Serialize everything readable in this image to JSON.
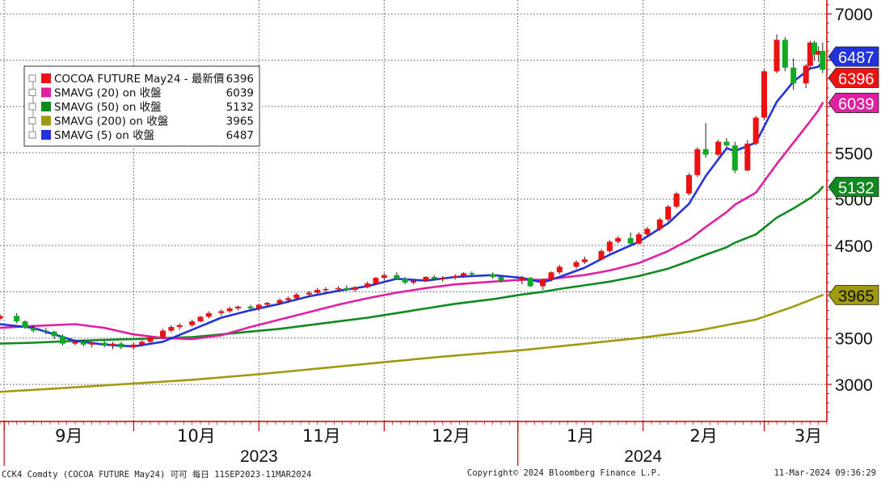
{
  "chart_data": {
    "type": "line",
    "title": "",
    "xlabel": "",
    "ylabel": "",
    "ylim": [
      2600,
      7150
    ],
    "y_ticks": [
      3000,
      3500,
      4000,
      4500,
      5000,
      5500,
      6000,
      6500,
      7000
    ],
    "x_date_range": [
      "2023-08-31",
      "2024-03-16"
    ],
    "months": [
      {
        "label": "9月",
        "date": "2023-09-01"
      },
      {
        "label": "10月",
        "date": "2023-10-02"
      },
      {
        "label": "11月",
        "date": "2023-11-01"
      },
      {
        "label": "12月",
        "date": "2023-12-01"
      },
      {
        "label": "1月",
        "date": "2024-01-02"
      },
      {
        "label": "2月",
        "date": "2024-02-01"
      },
      {
        "label": "3月",
        "date": "2024-03-01"
      }
    ],
    "years": [
      {
        "label": "2023",
        "date": "2023-11-01"
      },
      {
        "label": "2024",
        "date": "2024-02-01"
      }
    ],
    "legend": {
      "items": [
        {
          "label": "COCOA FUTURE May24 - 最新價",
          "value": "6396",
          "color": "#ee1111"
        },
        {
          "label": "SMAVG (20)  on 收盤",
          "value": "6039",
          "color": "#e020a0"
        },
        {
          "label": "SMAVG (50)  on 收盤",
          "value": "5132",
          "color": "#108a20"
        },
        {
          "label": "SMAVG (200)  on 收盤",
          "value": "3965",
          "color": "#a09a10"
        },
        {
          "label": "SMAVG (5)  on 收盤",
          "value": "6487",
          "color": "#2233dd"
        }
      ]
    },
    "value_flags": [
      {
        "value": 6487,
        "text": "6487",
        "color": "#2233dd"
      },
      {
        "value": 6396,
        "text": "6396",
        "color": "#ee1111"
      },
      {
        "value": 6039,
        "text": "6039",
        "color": "#e020a0"
      },
      {
        "value": 5132,
        "text": "5132",
        "color": "#108a20"
      },
      {
        "value": 3965,
        "text": "3965",
        "color": "#a09a10"
      }
    ],
    "candles": [
      [
        "2023-08-31",
        3710,
        3760,
        3690,
        3740
      ],
      [
        "2023-09-04",
        3740,
        3770,
        3660,
        3680
      ],
      [
        "2023-09-06",
        3680,
        3690,
        3600,
        3610
      ],
      [
        "2023-09-08",
        3610,
        3640,
        3560,
        3580
      ],
      [
        "2023-09-11",
        3580,
        3610,
        3540,
        3570
      ],
      [
        "2023-09-13",
        3570,
        3580,
        3490,
        3520
      ],
      [
        "2023-09-15",
        3520,
        3540,
        3420,
        3440
      ],
      [
        "2023-09-18",
        3440,
        3480,
        3420,
        3460
      ],
      [
        "2023-09-20",
        3460,
        3480,
        3410,
        3430
      ],
      [
        "2023-09-22",
        3430,
        3460,
        3400,
        3450
      ],
      [
        "2023-09-25",
        3450,
        3470,
        3400,
        3420
      ],
      [
        "2023-09-27",
        3420,
        3460,
        3380,
        3440
      ],
      [
        "2023-09-29",
        3440,
        3460,
        3380,
        3400
      ],
      [
        "2023-10-02",
        3400,
        3450,
        3380,
        3430
      ],
      [
        "2023-10-04",
        3430,
        3480,
        3410,
        3460
      ],
      [
        "2023-10-06",
        3460,
        3520,
        3440,
        3510
      ],
      [
        "2023-10-09",
        3510,
        3600,
        3490,
        3580
      ],
      [
        "2023-10-11",
        3580,
        3640,
        3560,
        3620
      ],
      [
        "2023-10-13",
        3620,
        3660,
        3590,
        3640
      ],
      [
        "2023-10-16",
        3640,
        3700,
        3620,
        3680
      ],
      [
        "2023-10-18",
        3680,
        3740,
        3670,
        3730
      ],
      [
        "2023-10-20",
        3730,
        3790,
        3710,
        3770
      ],
      [
        "2023-10-23",
        3770,
        3810,
        3740,
        3790
      ],
      [
        "2023-10-25",
        3790,
        3840,
        3770,
        3820
      ],
      [
        "2023-10-27",
        3820,
        3850,
        3800,
        3840
      ],
      [
        "2023-10-30",
        3840,
        3860,
        3800,
        3820
      ],
      [
        "2023-11-01",
        3820,
        3870,
        3800,
        3860
      ],
      [
        "2023-11-03",
        3860,
        3890,
        3840,
        3880
      ],
      [
        "2023-11-06",
        3880,
        3930,
        3860,
        3910
      ],
      [
        "2023-11-08",
        3910,
        3950,
        3880,
        3930
      ],
      [
        "2023-11-10",
        3930,
        3990,
        3910,
        3970
      ],
      [
        "2023-11-13",
        3970,
        4010,
        3950,
        3990
      ],
      [
        "2023-11-15",
        3990,
        4040,
        3970,
        4020
      ],
      [
        "2023-11-17",
        4020,
        4050,
        3990,
        4030
      ],
      [
        "2023-11-20",
        4030,
        4060,
        4000,
        4040
      ],
      [
        "2023-11-22",
        4040,
        4070,
        4010,
        4020
      ],
      [
        "2023-11-24",
        4020,
        4060,
        4000,
        4050
      ],
      [
        "2023-11-27",
        4050,
        4110,
        4040,
        4090
      ],
      [
        "2023-11-29",
        4090,
        4160,
        4080,
        4150
      ],
      [
        "2023-12-01",
        4150,
        4200,
        4120,
        4180
      ],
      [
        "2023-12-04",
        4180,
        4210,
        4130,
        4140
      ],
      [
        "2023-12-06",
        4140,
        4160,
        4080,
        4100
      ],
      [
        "2023-12-08",
        4100,
        4140,
        4080,
        4120
      ],
      [
        "2023-12-11",
        4120,
        4170,
        4110,
        4160
      ],
      [
        "2023-12-13",
        4160,
        4180,
        4120,
        4140
      ],
      [
        "2023-12-15",
        4140,
        4170,
        4110,
        4150
      ],
      [
        "2023-12-18",
        4150,
        4190,
        4130,
        4170
      ],
      [
        "2023-12-20",
        4170,
        4210,
        4150,
        4200
      ],
      [
        "2023-12-22",
        4200,
        4220,
        4170,
        4190
      ],
      [
        "2023-12-27",
        4190,
        4210,
        4140,
        4160
      ],
      [
        "2023-12-29",
        4160,
        4180,
        4100,
        4120
      ],
      [
        "2024-01-03",
        4120,
        4170,
        4080,
        4150
      ],
      [
        "2024-01-05",
        4150,
        4160,
        4050,
        4060
      ],
      [
        "2024-01-08",
        4060,
        4140,
        4020,
        4130
      ],
      [
        "2024-01-10",
        4130,
        4220,
        4110,
        4210
      ],
      [
        "2024-01-12",
        4210,
        4290,
        4190,
        4270
      ],
      [
        "2024-01-16",
        4270,
        4340,
        4250,
        4320
      ],
      [
        "2024-01-18",
        4320,
        4380,
        4300,
        4350
      ],
      [
        "2024-01-22",
        4350,
        4460,
        4340,
        4440
      ],
      [
        "2024-01-24",
        4440,
        4560,
        4420,
        4540
      ],
      [
        "2024-01-26",
        4540,
        4600,
        4520,
        4580
      ],
      [
        "2024-01-29",
        4580,
        4640,
        4500,
        4520
      ],
      [
        "2024-01-31",
        4520,
        4640,
        4510,
        4620
      ],
      [
        "2024-02-02",
        4620,
        4700,
        4600,
        4680
      ],
      [
        "2024-02-05",
        4680,
        4800,
        4660,
        4780
      ],
      [
        "2024-02-07",
        4780,
        4940,
        4760,
        4920
      ],
      [
        "2024-02-09",
        4920,
        5080,
        4900,
        5060
      ],
      [
        "2024-02-12",
        5060,
        5280,
        5040,
        5260
      ],
      [
        "2024-02-14",
        5260,
        5560,
        5240,
        5540
      ],
      [
        "2024-02-16",
        5540,
        5820,
        5450,
        5480
      ],
      [
        "2024-02-19",
        5480,
        5640,
        5460,
        5620
      ],
      [
        "2024-02-21",
        5620,
        5660,
        5560,
        5580
      ],
      [
        "2024-02-23",
        5580,
        5620,
        5280,
        5310
      ],
      [
        "2024-02-26",
        5310,
        5640,
        5300,
        5600
      ],
      [
        "2024-02-28",
        5600,
        5900,
        5580,
        5880
      ],
      [
        "2024-03-01",
        5880,
        6400,
        5860,
        6380
      ],
      [
        "2024-03-04",
        6380,
        6780,
        6360,
        6720
      ],
      [
        "2024-03-06",
        6720,
        6750,
        6380,
        6420
      ],
      [
        "2024-03-08",
        6420,
        6520,
        6180,
        6250
      ],
      [
        "2024-03-11",
        6250,
        6460,
        6200,
        6440
      ],
      [
        "2024-03-12",
        6440,
        6710,
        6400,
        6690
      ],
      [
        "2024-03-13",
        6690,
        6710,
        6500,
        6560
      ],
      [
        "2024-03-14",
        6560,
        6650,
        6480,
        6600
      ],
      [
        "2024-03-15",
        6600,
        6690,
        6360,
        6396
      ]
    ],
    "series": [
      {
        "name": "SMAVG (5)",
        "color": "#2233dd",
        "width": 2.6,
        "points": [
          [
            "2023-08-31",
            3650
          ],
          [
            "2023-09-08",
            3610
          ],
          [
            "2023-09-18",
            3470
          ],
          [
            "2023-09-25",
            3430
          ],
          [
            "2023-10-02",
            3410
          ],
          [
            "2023-10-09",
            3460
          ],
          [
            "2023-10-16",
            3590
          ],
          [
            "2023-10-23",
            3720
          ],
          [
            "2023-10-30",
            3800
          ],
          [
            "2023-11-06",
            3870
          ],
          [
            "2023-11-13",
            3950
          ],
          [
            "2023-11-20",
            4010
          ],
          [
            "2023-11-27",
            4060
          ],
          [
            "2023-12-04",
            4140
          ],
          [
            "2023-12-11",
            4120
          ],
          [
            "2023-12-18",
            4160
          ],
          [
            "2023-12-27",
            4180
          ],
          [
            "2024-01-03",
            4150
          ],
          [
            "2024-01-08",
            4100
          ],
          [
            "2024-01-12",
            4160
          ],
          [
            "2024-01-18",
            4260
          ],
          [
            "2024-01-24",
            4400
          ],
          [
            "2024-01-31",
            4540
          ],
          [
            "2024-02-07",
            4740
          ],
          [
            "2024-02-12",
            4950
          ],
          [
            "2024-02-16",
            5250
          ],
          [
            "2024-02-21",
            5550
          ],
          [
            "2024-02-23",
            5520
          ],
          [
            "2024-02-28",
            5610
          ],
          [
            "2024-03-04",
            6050
          ],
          [
            "2024-03-08",
            6270
          ],
          [
            "2024-03-12",
            6410
          ],
          [
            "2024-03-14",
            6430
          ],
          [
            "2024-03-15",
            6487
          ]
        ]
      },
      {
        "name": "SMAVG (20)",
        "color": "#e020a0",
        "width": 2.6,
        "points": [
          [
            "2023-08-31",
            3610
          ],
          [
            "2023-09-08",
            3630
          ],
          [
            "2023-09-18",
            3650
          ],
          [
            "2023-09-25",
            3610
          ],
          [
            "2023-10-02",
            3540
          ],
          [
            "2023-10-09",
            3500
          ],
          [
            "2023-10-16",
            3490
          ],
          [
            "2023-10-23",
            3530
          ],
          [
            "2023-10-30",
            3620
          ],
          [
            "2023-11-06",
            3700
          ],
          [
            "2023-11-13",
            3780
          ],
          [
            "2023-11-20",
            3860
          ],
          [
            "2023-11-27",
            3930
          ],
          [
            "2023-12-04",
            3990
          ],
          [
            "2023-12-11",
            4040
          ],
          [
            "2023-12-18",
            4080
          ],
          [
            "2023-12-27",
            4110
          ],
          [
            "2024-01-03",
            4130
          ],
          [
            "2024-01-08",
            4130
          ],
          [
            "2024-01-12",
            4150
          ],
          [
            "2024-01-18",
            4180
          ],
          [
            "2024-01-24",
            4230
          ],
          [
            "2024-01-31",
            4310
          ],
          [
            "2024-02-07",
            4440
          ],
          [
            "2024-02-12",
            4560
          ],
          [
            "2024-02-16",
            4700
          ],
          [
            "2024-02-21",
            4860
          ],
          [
            "2024-02-23",
            4940
          ],
          [
            "2024-02-28",
            5070
          ],
          [
            "2024-03-04",
            5380
          ],
          [
            "2024-03-08",
            5610
          ],
          [
            "2024-03-12",
            5840
          ],
          [
            "2024-03-14",
            5960
          ],
          [
            "2024-03-15",
            6039
          ]
        ]
      },
      {
        "name": "SMAVG (50)",
        "color": "#108a20",
        "width": 2.6,
        "points": [
          [
            "2023-08-31",
            3440
          ],
          [
            "2023-09-08",
            3450
          ],
          [
            "2023-09-18",
            3470
          ],
          [
            "2023-09-25",
            3480
          ],
          [
            "2023-10-02",
            3490
          ],
          [
            "2023-10-09",
            3500
          ],
          [
            "2023-10-16",
            3510
          ],
          [
            "2023-10-23",
            3540
          ],
          [
            "2023-10-30",
            3570
          ],
          [
            "2023-11-06",
            3600
          ],
          [
            "2023-11-13",
            3640
          ],
          [
            "2023-11-20",
            3680
          ],
          [
            "2023-11-27",
            3720
          ],
          [
            "2023-12-04",
            3770
          ],
          [
            "2023-12-11",
            3820
          ],
          [
            "2023-12-18",
            3870
          ],
          [
            "2023-12-27",
            3920
          ],
          [
            "2024-01-03",
            3970
          ],
          [
            "2024-01-08",
            4000
          ],
          [
            "2024-01-12",
            4030
          ],
          [
            "2024-01-18",
            4070
          ],
          [
            "2024-01-24",
            4110
          ],
          [
            "2024-01-31",
            4170
          ],
          [
            "2024-02-07",
            4250
          ],
          [
            "2024-02-12",
            4330
          ],
          [
            "2024-02-16",
            4400
          ],
          [
            "2024-02-21",
            4480
          ],
          [
            "2024-02-23",
            4530
          ],
          [
            "2024-02-28",
            4620
          ],
          [
            "2024-03-04",
            4800
          ],
          [
            "2024-03-08",
            4900
          ],
          [
            "2024-03-12",
            5010
          ],
          [
            "2024-03-14",
            5080
          ],
          [
            "2024-03-15",
            5132
          ]
        ]
      },
      {
        "name": "SMAVG (200)",
        "color": "#a09a10",
        "width": 2.6,
        "points": [
          [
            "2023-08-31",
            2920
          ],
          [
            "2023-09-15",
            2960
          ],
          [
            "2023-10-02",
            3010
          ],
          [
            "2023-10-16",
            3050
          ],
          [
            "2023-11-01",
            3110
          ],
          [
            "2023-11-15",
            3170
          ],
          [
            "2023-12-01",
            3240
          ],
          [
            "2023-12-15",
            3300
          ],
          [
            "2024-01-03",
            3370
          ],
          [
            "2024-01-16",
            3430
          ],
          [
            "2024-01-31",
            3500
          ],
          [
            "2024-02-14",
            3580
          ],
          [
            "2024-02-28",
            3700
          ],
          [
            "2024-03-08",
            3840
          ],
          [
            "2024-03-15",
            3965
          ]
        ]
      }
    ]
  },
  "footer": {
    "left": "CCK4 Comdty (COCOA FUTURE      May24) 可可  每日 11SEP2023-11MAR2024",
    "middle": "Copyright© 2024 Bloomberg Finance L.P.",
    "right": "11-Mar-2024 09:36:29"
  }
}
